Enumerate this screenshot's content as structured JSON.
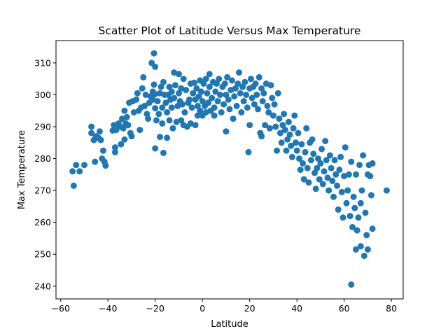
{
  "chart_data": {
    "type": "scatter",
    "title": "Scatter Plot of Latitude Versus Max Temperature",
    "xlabel": "Latitude",
    "ylabel": "Max Temperature",
    "xlim": [
      -62,
      85
    ],
    "ylim": [
      236,
      317
    ],
    "xticks": [
      -60,
      -40,
      -20,
      0,
      20,
      40,
      60,
      80
    ],
    "yticks": [
      240,
      250,
      260,
      270,
      280,
      290,
      300,
      310
    ],
    "grid": false,
    "color": "#1f77b4",
    "points": [
      [
        -55,
        276
      ],
      [
        -54.5,
        271.5
      ],
      [
        -53.5,
        278
      ],
      [
        -52,
        276
      ],
      [
        -50,
        278
      ],
      [
        -47,
        290
      ],
      [
        -47,
        288
      ],
      [
        -46,
        285.8
      ],
      [
        -45.5,
        279
      ],
      [
        -45,
        287
      ],
      [
        -44,
        286.5
      ],
      [
        -43.5,
        288.5
      ],
      [
        -43,
        285.8
      ],
      [
        -42.5,
        280
      ],
      [
        -42,
        282.5
      ],
      [
        -41.5,
        279
      ],
      [
        -41,
        277.8
      ],
      [
        -38,
        288.8
      ],
      [
        -37.5,
        290.5
      ],
      [
        -37,
        283.5
      ],
      [
        -37,
        282
      ],
      [
        -36.5,
        289
      ],
      [
        -35.5,
        291
      ],
      [
        -35,
        290
      ],
      [
        -34.5,
        284.5
      ],
      [
        -34,
        292.5
      ],
      [
        -33.5,
        289.5
      ],
      [
        -33,
        286
      ],
      [
        -33,
        295
      ],
      [
        -32.5,
        291
      ],
      [
        -32,
        293
      ],
      [
        -31.5,
        290.5
      ],
      [
        -31,
        297.5
      ],
      [
        -30.5,
        288
      ],
      [
        -30,
        287
      ],
      [
        -29.5,
        298
      ],
      [
        -29,
        294.5
      ],
      [
        -28,
        298.5
      ],
      [
        -27.5,
        300.5
      ],
      [
        -27,
        295
      ],
      [
        -26.5,
        289
      ],
      [
        -26,
        296
      ],
      [
        -25.5,
        302
      ],
      [
        -25,
        305.5
      ],
      [
        -24.5,
        296.5
      ],
      [
        -24,
        300
      ],
      [
        -23.5,
        294
      ],
      [
        -23,
        292.5
      ],
      [
        -22.5,
        297.5
      ],
      [
        -22,
        299.5
      ],
      [
        -21.5,
        310
      ],
      [
        -21,
        301
      ],
      [
        -21,
        298.5
      ],
      [
        -20.5,
        313
      ],
      [
        -20.5,
        303.2
      ],
      [
        -20,
        308.8
      ],
      [
        -20,
        300.2
      ],
      [
        -20,
        295.8
      ],
      [
        -20,
        283.2
      ],
      [
        -19.5,
        292
      ],
      [
        -19,
        298
      ],
      [
        -18.5,
        294
      ],
      [
        -18,
        300.5
      ],
      [
        -18,
        286.8
      ],
      [
        -17.5,
        302.5
      ],
      [
        -17,
        296
      ],
      [
        -17,
        291
      ],
      [
        -16.5,
        304
      ],
      [
        -16.5,
        281.8
      ],
      [
        -16,
        300
      ],
      [
        -15.5,
        297.5
      ],
      [
        -15,
        294.5
      ],
      [
        -15,
        286.5
      ],
      [
        -14.5,
        300
      ],
      [
        -14,
        302.5
      ],
      [
        -14,
        292
      ],
      [
        -13.5,
        298.5
      ],
      [
        -13,
        301
      ],
      [
        -13,
        296
      ],
      [
        -12.5,
        289.5
      ],
      [
        -12,
        307
      ],
      [
        -12,
        299
      ],
      [
        -11.5,
        303
      ],
      [
        -11,
        291.5
      ],
      [
        -10.5,
        296.5
      ],
      [
        -10,
        306.5
      ],
      [
        -10,
        300.5
      ],
      [
        -9.5,
        298
      ],
      [
        -9,
        302
      ],
      [
        -9,
        292
      ],
      [
        -8.5,
        297
      ],
      [
        -8,
        305
      ],
      [
        -8,
        290.5
      ],
      [
        -7.5,
        294.5
      ],
      [
        -7,
        301.5
      ],
      [
        -6.5,
        290
      ],
      [
        -6,
        297.5
      ],
      [
        -5.5,
        298.5
      ],
      [
        -5,
        303.5
      ],
      [
        -5,
        291
      ],
      [
        -4.5,
        296
      ],
      [
        -4,
        300.5
      ],
      [
        -3.5,
        303.8
      ],
      [
        -3,
        298.5
      ],
      [
        -3,
        290.5
      ],
      [
        -2.5,
        302
      ],
      [
        -2,
        296.5
      ],
      [
        -2,
        293.5
      ],
      [
        -1.5,
        299.5
      ],
      [
        -1,
        304.5
      ],
      [
        -1,
        295
      ],
      [
        -0.5,
        301
      ],
      [
        0,
        298
      ],
      [
        0,
        293.5
      ],
      [
        0.5,
        303.5
      ],
      [
        1,
        296.5
      ],
      [
        1.5,
        305
      ],
      [
        1.5,
        294.5
      ],
      [
        2,
        300.5
      ],
      [
        2.5,
        297.5
      ],
      [
        3,
        306.5
      ],
      [
        3,
        302.5
      ],
      [
        3.5,
        295
      ],
      [
        4,
        299
      ],
      [
        4.5,
        304
      ],
      [
        5,
        296
      ],
      [
        5,
        293.5
      ],
      [
        5.5,
        301
      ],
      [
        6,
        303.5
      ],
      [
        6.5,
        298
      ],
      [
        7,
        305
      ],
      [
        7.5,
        300
      ],
      [
        8,
        294.5
      ],
      [
        8.5,
        302.5
      ],
      [
        9,
        297
      ],
      [
        9.5,
        303.5
      ],
      [
        10,
        300
      ],
      [
        10,
        288.5
      ],
      [
        10.5,
        305.5
      ],
      [
        11,
        298.5
      ],
      [
        11.5,
        295.5
      ],
      [
        12,
        301.5
      ],
      [
        12.5,
        304.5
      ],
      [
        13,
        292.5
      ],
      [
        13.5,
        299.5
      ],
      [
        14,
        302
      ],
      [
        14.5,
        296.5
      ],
      [
        15,
        303.5
      ],
      [
        15.5,
        307
      ],
      [
        16,
        300.5
      ],
      [
        16.5,
        294.5
      ],
      [
        17,
        302.5
      ],
      [
        17.5,
        298
      ],
      [
        18,
        304
      ],
      [
        18.5,
        300
      ],
      [
        19,
        296
      ],
      [
        19.5,
        282
      ],
      [
        20,
        302
      ],
      [
        20,
        290.5
      ],
      [
        20.5,
        305
      ],
      [
        21,
        299
      ],
      [
        21.5,
        302.5
      ],
      [
        22,
        297
      ],
      [
        22.5,
        303.5
      ],
      [
        23,
        300
      ],
      [
        23.5,
        295.5
      ],
      [
        24,
        305.5
      ],
      [
        24.5,
        288
      ],
      [
        25,
        302
      ],
      [
        25,
        287
      ],
      [
        25.5,
        298
      ],
      [
        26,
        300.5
      ],
      [
        26.5,
        290.5
      ],
      [
        27,
        303.5
      ],
      [
        27.5,
        296.5
      ],
      [
        28,
        294.5
      ],
      [
        28.5,
        289.5
      ],
      [
        29,
        303
      ],
      [
        29.5,
        299
      ],
      [
        30,
        293.5
      ],
      [
        30.5,
        297
      ],
      [
        31,
        290
      ],
      [
        31.5,
        282.5
      ],
      [
        32,
        300.5
      ],
      [
        32.5,
        292.5
      ],
      [
        33,
        288
      ],
      [
        33.5,
        285
      ],
      [
        34,
        290.5
      ],
      [
        34.5,
        294
      ],
      [
        35,
        289
      ],
      [
        35.5,
        282.5
      ],
      [
        36,
        286
      ],
      [
        36.5,
        291.5
      ],
      [
        37,
        287.5
      ],
      [
        37.5,
        284
      ],
      [
        38,
        280.5
      ],
      [
        38.5,
        289.5
      ],
      [
        39,
        293.5
      ],
      [
        39.5,
        285
      ],
      [
        40,
        282.5
      ],
      [
        40.5,
        288
      ],
      [
        41,
        280
      ],
      [
        41.5,
        276.5
      ],
      [
        42,
        284.5
      ],
      [
        42.5,
        278.5
      ],
      [
        43,
        273.5
      ],
      [
        43.5,
        282
      ],
      [
        44,
        289.5
      ],
      [
        44.5,
        277
      ],
      [
        45,
        272.5
      ],
      [
        45.5,
        285
      ],
      [
        46,
        279.5
      ],
      [
        46.5,
        286
      ],
      [
        47,
        281.5
      ],
      [
        47.5,
        275.5
      ],
      [
        48,
        270.5
      ],
      [
        48.5,
        277
      ],
      [
        49,
        280
      ],
      [
        49.5,
        273.5
      ],
      [
        50,
        278.5
      ],
      [
        50.5,
        283
      ],
      [
        51,
        272
      ],
      [
        51.5,
        276
      ],
      [
        52,
        285.5
      ],
      [
        52.5,
        279.5
      ],
      [
        53,
        274
      ],
      [
        53.5,
        270
      ],
      [
        54,
        281
      ],
      [
        54.5,
        277
      ],
      [
        55,
        273
      ],
      [
        55.5,
        268
      ],
      [
        56,
        279.5
      ],
      [
        56.5,
        275
      ],
      [
        57,
        271.5
      ],
      [
        57.5,
        264
      ],
      [
        58,
        276.5
      ],
      [
        58.5,
        280.5
      ],
      [
        59,
        269.5
      ],
      [
        59.5,
        261.5
      ],
      [
        60,
        274.5
      ],
      [
        60.5,
        283.5
      ],
      [
        61,
        266
      ],
      [
        61.5,
        270
      ],
      [
        62,
        275
      ],
      [
        62.5,
        262
      ],
      [
        63,
        240.5
      ],
      [
        63,
        279
      ],
      [
        63.5,
        258.5
      ],
      [
        64,
        268
      ],
      [
        64.5,
        264.5
      ],
      [
        65,
        251.5
      ],
      [
        65,
        275
      ],
      [
        65.5,
        257.5
      ],
      [
        66,
        261.5
      ],
      [
        66.5,
        278
      ],
      [
        67,
        252.5
      ],
      [
        67,
        266
      ],
      [
        67.5,
        270
      ],
      [
        68,
        281
      ],
      [
        68.5,
        249.5
      ],
      [
        69,
        263
      ],
      [
        69.5,
        256
      ],
      [
        70,
        275
      ],
      [
        70,
        251.5
      ],
      [
        70.5,
        278
      ],
      [
        71,
        274.5
      ],
      [
        71.5,
        268.5
      ],
      [
        72,
        258
      ],
      [
        72,
        278.5
      ],
      [
        78,
        270
      ]
    ]
  }
}
